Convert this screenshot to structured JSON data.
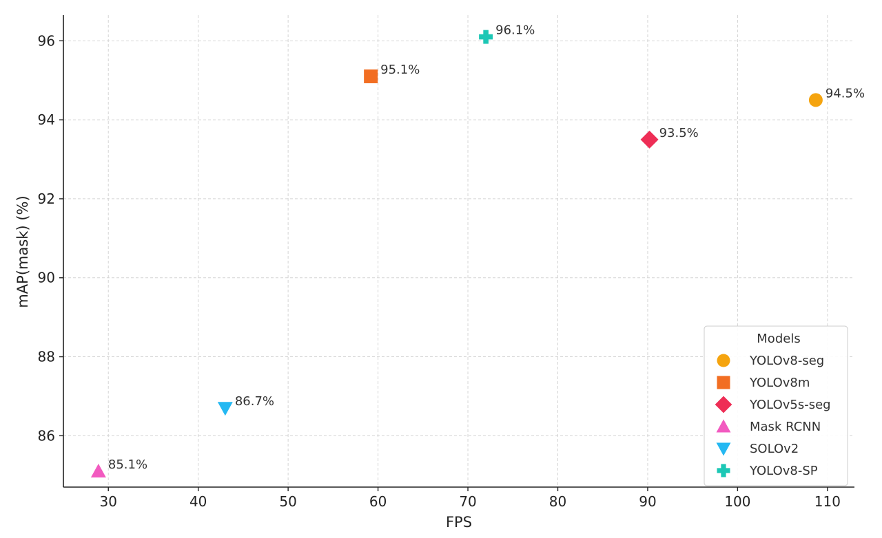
{
  "chart_data": {
    "type": "scatter",
    "title": "",
    "xlabel": "FPS",
    "ylabel": "mAP(mask) (%)",
    "xlim": [
      25,
      113
    ],
    "ylim": [
      84.7,
      96.65
    ],
    "x_ticks": [
      30,
      40,
      50,
      60,
      70,
      80,
      90,
      100,
      110
    ],
    "y_ticks": [
      86,
      88,
      90,
      92,
      94,
      96
    ],
    "grid": true,
    "legend": {
      "title": "Models",
      "position": "bottom-right"
    },
    "series": [
      {
        "name": "YOLOv8-seg",
        "marker": "circle",
        "color": "#F5A40F",
        "x": 108.7,
        "y": 94.5,
        "label": "94.5%"
      },
      {
        "name": "YOLOv8m",
        "marker": "square",
        "color": "#F26E22",
        "x": 59.2,
        "y": 95.1,
        "label": "95.1%"
      },
      {
        "name": "YOLOv5s-seg",
        "marker": "diamond",
        "color": "#EE2E56",
        "x": 90.2,
        "y": 93.5,
        "label": "93.5%"
      },
      {
        "name": "Mask RCNN",
        "marker": "triangle-up",
        "color": "#F25AC0",
        "x": 28.9,
        "y": 85.1,
        "label": "85.1%"
      },
      {
        "name": "SOLOv2",
        "marker": "triangle-down",
        "color": "#24B8F2",
        "x": 43.0,
        "y": 86.7,
        "label": "86.7%"
      },
      {
        "name": "YOLOv8-SP",
        "marker": "plus",
        "color": "#1CC7B5",
        "x": 72.0,
        "y": 96.1,
        "label": "96.1%"
      }
    ]
  }
}
